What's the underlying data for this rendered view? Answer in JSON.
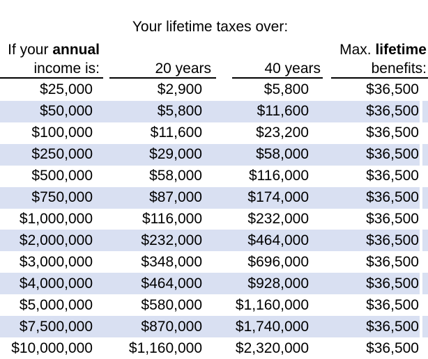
{
  "title": "Your lifetime taxes over:",
  "headers": {
    "income": {
      "regular": "If your ",
      "bold": "annual",
      "line2": "income is:"
    },
    "col20": "20 years",
    "col40": "40 years",
    "benefits": {
      "regular": "Max. ",
      "bold": "lifetime",
      "line2": "benefits:"
    }
  },
  "rows": [
    {
      "income": "$25,000",
      "tax20": "$2,900",
      "tax40": "$5,800",
      "benefits": "$36,500"
    },
    {
      "income": "$50,000",
      "tax20": "$5,800",
      "tax40": "$11,600",
      "benefits": "$36,500"
    },
    {
      "income": "$100,000",
      "tax20": "$11,600",
      "tax40": "$23,200",
      "benefits": "$36,500"
    },
    {
      "income": "$250,000",
      "tax20": "$29,000",
      "tax40": "$58,000",
      "benefits": "$36,500"
    },
    {
      "income": "$500,000",
      "tax20": "$58,000",
      "tax40": "$116,000",
      "benefits": "$36,500"
    },
    {
      "income": "$750,000",
      "tax20": "$87,000",
      "tax40": "$174,000",
      "benefits": "$36,500"
    },
    {
      "income": "$1,000,000",
      "tax20": "$116,000",
      "tax40": "$232,000",
      "benefits": "$36,500"
    },
    {
      "income": "$2,000,000",
      "tax20": "$232,000",
      "tax40": "$464,000",
      "benefits": "$36,500"
    },
    {
      "income": "$3,000,000",
      "tax20": "$348,000",
      "tax40": "$696,000",
      "benefits": "$36,500"
    },
    {
      "income": "$4,000,000",
      "tax20": "$464,000",
      "tax40": "$928,000",
      "benefits": "$36,500"
    },
    {
      "income": "$5,000,000",
      "tax20": "$580,000",
      "tax40": "$1,160,000",
      "benefits": "$36,500"
    },
    {
      "income": "$7,500,000",
      "tax20": "$870,000",
      "tax40": "$1,740,000",
      "benefits": "$36,500"
    },
    {
      "income": "$10,000,000",
      "tax20": "$1,160,000",
      "tax40": "$2,320,000",
      "benefits": "$36,500"
    }
  ],
  "colors": {
    "row_shade": "#D9E0F2",
    "text": "#000000",
    "border": "#000000",
    "background": "#FFFFFF"
  },
  "chart_data": {
    "type": "table",
    "title": "Your lifetime taxes over:",
    "columns": [
      "If your annual income is:",
      "20 years",
      "40 years",
      "Max. lifetime benefits:"
    ],
    "annual_income": [
      25000,
      50000,
      100000,
      250000,
      500000,
      750000,
      1000000,
      2000000,
      3000000,
      4000000,
      5000000,
      7500000,
      10000000
    ],
    "lifetime_taxes_20_years": [
      2900,
      5800,
      11600,
      29000,
      58000,
      87000,
      116000,
      232000,
      348000,
      464000,
      580000,
      870000,
      1160000
    ],
    "lifetime_taxes_40_years": [
      5800,
      11600,
      23200,
      58000,
      116000,
      174000,
      232000,
      464000,
      696000,
      928000,
      1160000,
      1740000,
      2320000
    ],
    "max_lifetime_benefits": [
      36500,
      36500,
      36500,
      36500,
      36500,
      36500,
      36500,
      36500,
      36500,
      36500,
      36500,
      36500,
      36500
    ],
    "layout": {
      "banding": "alternate rows shaded",
      "alignment": "right"
    }
  }
}
